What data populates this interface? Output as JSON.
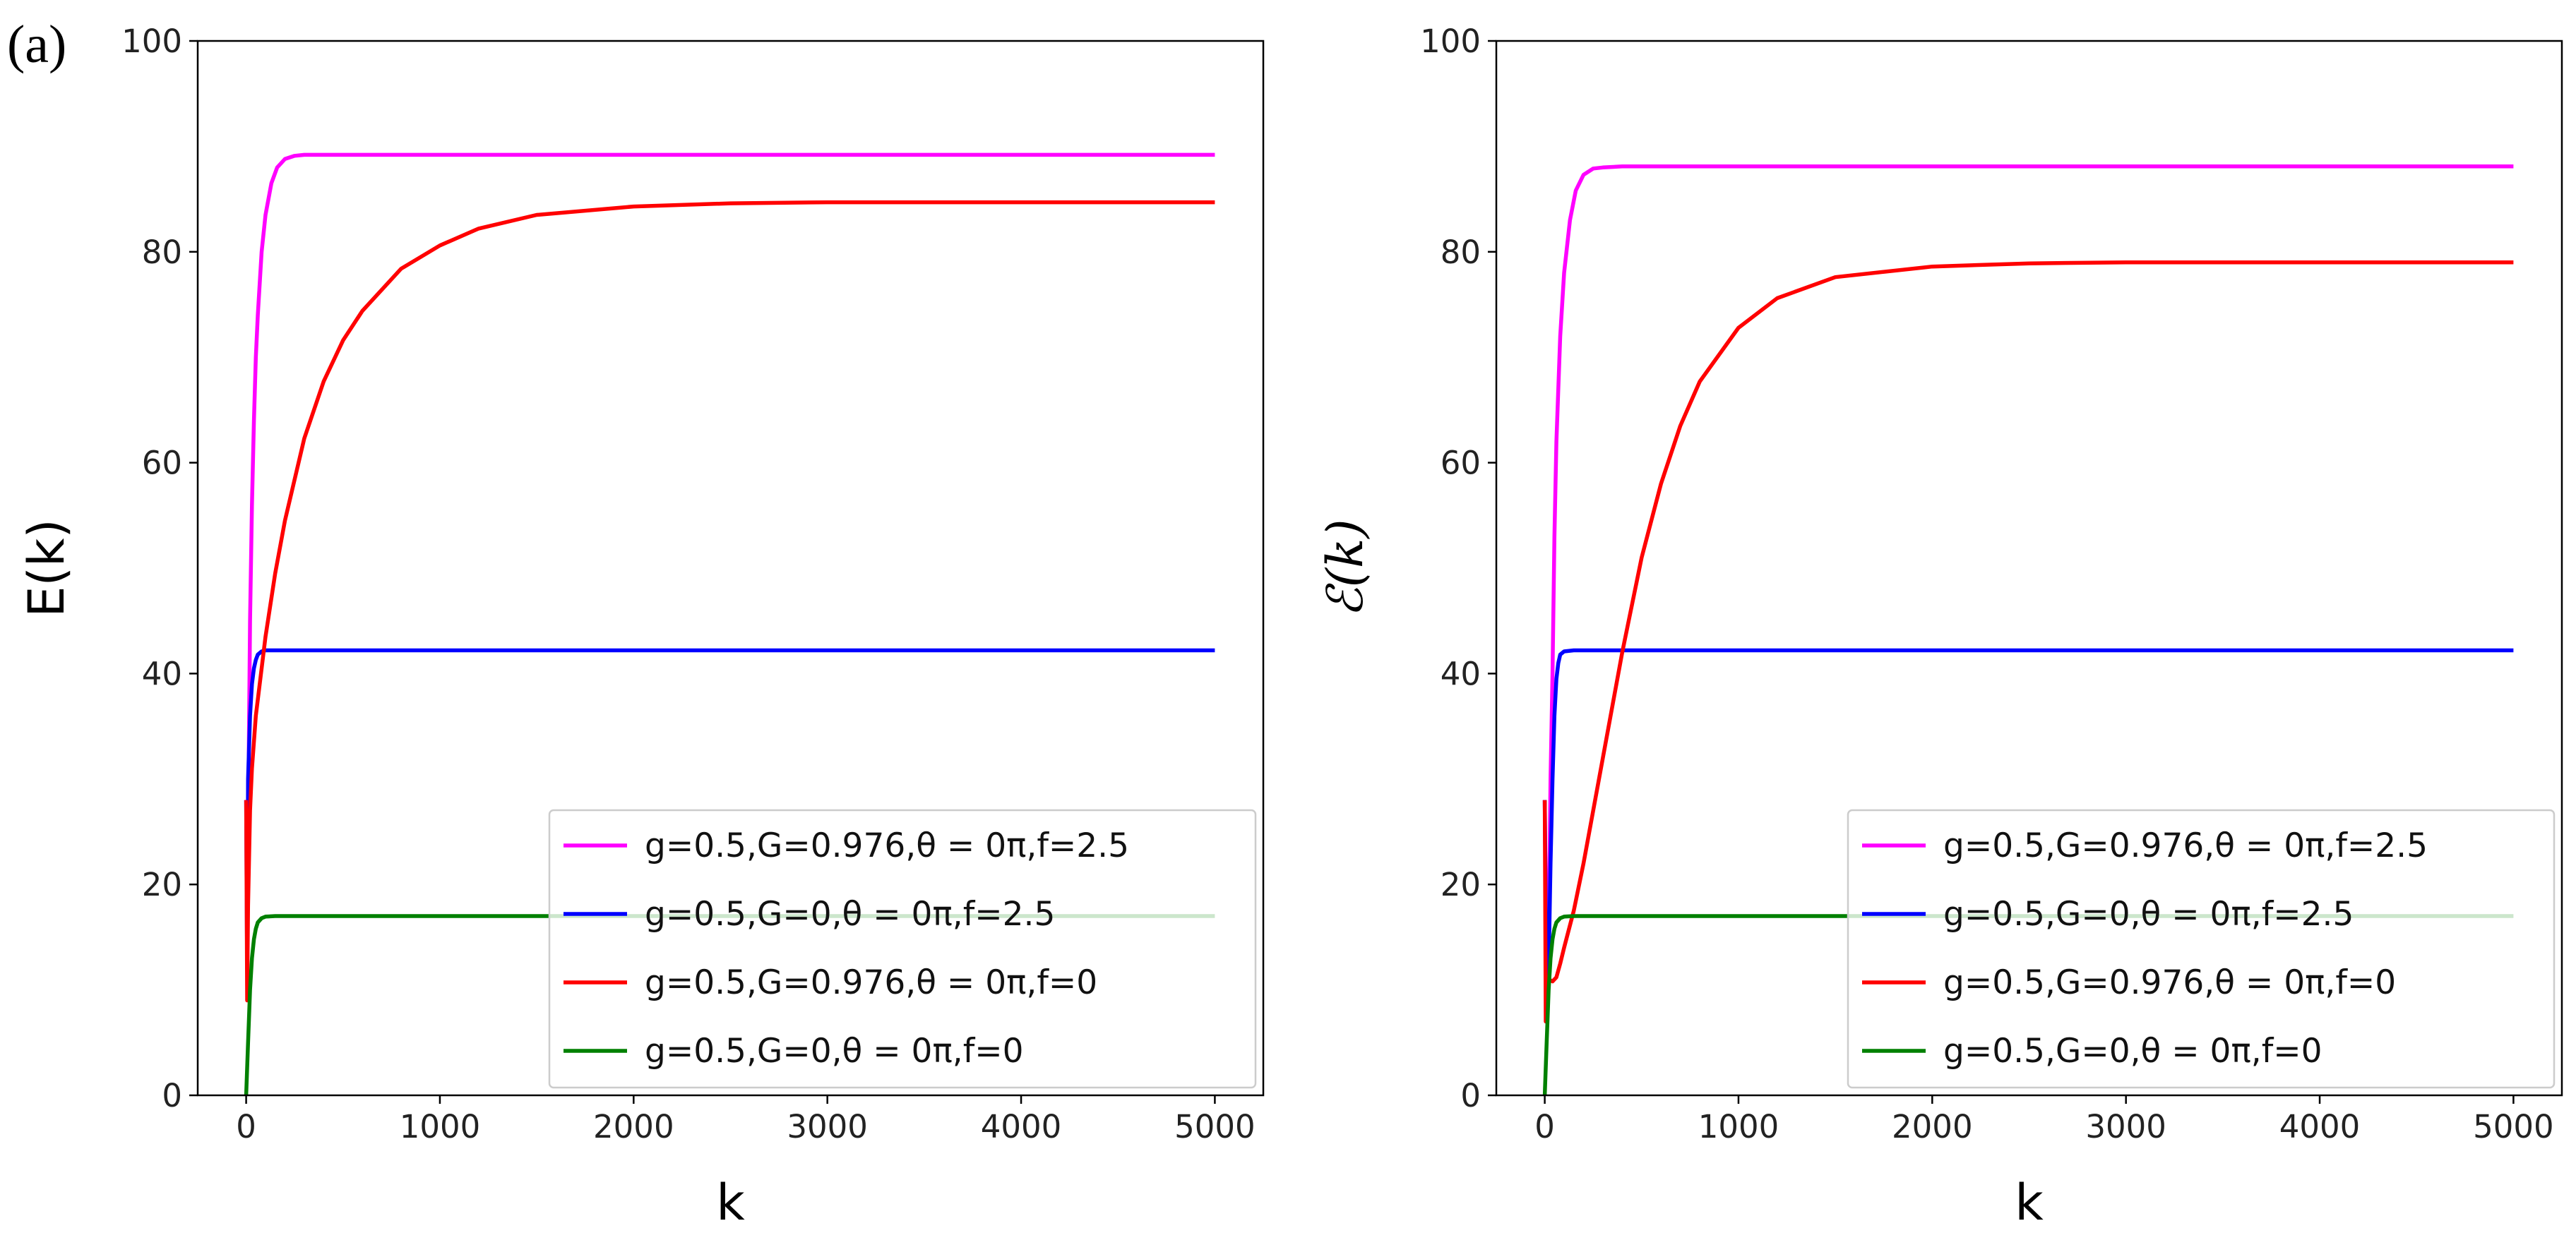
{
  "panel_label": "(a)",
  "chart_data": [
    {
      "type": "line",
      "xlabel": "k",
      "ylabel": "E(k)",
      "ylabel_style": "plain",
      "xlim": [
        -250,
        5250
      ],
      "ylim": [
        0,
        100
      ],
      "xticks": [
        0,
        1000,
        2000,
        3000,
        4000,
        5000
      ],
      "xtick_labels": [
        "0",
        "1000",
        "2000",
        "3000",
        "4000",
        "5000"
      ],
      "yticks": [
        0,
        20,
        40,
        60,
        80,
        100
      ],
      "ytick_labels": [
        "0",
        "20",
        "40",
        "60",
        "80",
        "100"
      ],
      "legend_position": "lower-right",
      "series": [
        {
          "name": "g=0.5,G=0.976,θ = 0π,f=2.5",
          "color": "#ff00ff",
          "x": [
            0,
            10,
            20,
            30,
            40,
            50,
            60,
            80,
            100,
            130,
            160,
            200,
            250,
            300,
            350,
            400,
            500,
            700,
            1000,
            2000,
            3000,
            4000,
            5000
          ],
          "y": [
            28,
            25,
            45,
            56,
            64,
            70,
            74,
            80,
            83.5,
            86.5,
            88,
            88.8,
            89.1,
            89.2,
            89.2,
            89.2,
            89.2,
            89.2,
            89.2,
            89.2,
            89.2,
            89.2,
            89.2
          ]
        },
        {
          "name": "g=0.5,G=0,θ = 0π,f=2.5",
          "color": "#0000ff",
          "x": [
            0,
            5,
            10,
            20,
            30,
            40,
            50,
            60,
            80,
            100,
            150,
            200,
            500,
            1000,
            2000,
            3000,
            4000,
            5000
          ],
          "y": [
            28,
            12,
            30,
            36,
            39,
            40.5,
            41.3,
            41.8,
            42.1,
            42.2,
            42.2,
            42.2,
            42.2,
            42.2,
            42.2,
            42.2,
            42.2,
            42.2
          ]
        },
        {
          "name": "g=0.5,G=0.976,θ = 0π,f=0",
          "color": "#ff0000",
          "x": [
            0,
            5,
            10,
            20,
            30,
            50,
            100,
            150,
            200,
            300,
            400,
            500,
            600,
            800,
            1000,
            1200,
            1500,
            2000,
            2500,
            3000,
            4000,
            5000
          ],
          "y": [
            28,
            9,
            18,
            27,
            31,
            36,
            43.5,
            49.5,
            54.5,
            62.3,
            67.7,
            71.6,
            74.4,
            78.4,
            80.6,
            82.2,
            83.5,
            84.3,
            84.6,
            84.7,
            84.7,
            84.7
          ]
        },
        {
          "name": "g=0.5,G=0,θ = 0π,f=0",
          "color": "#008000",
          "x": [
            0,
            10,
            20,
            30,
            40,
            50,
            60,
            80,
            100,
            150,
            200,
            500,
            1000,
            2000,
            3000,
            4000,
            5000
          ],
          "y": [
            0,
            5,
            10,
            13,
            14.8,
            15.8,
            16.4,
            16.8,
            16.95,
            17,
            17,
            17,
            17,
            17,
            17,
            17,
            17
          ]
        }
      ]
    },
    {
      "type": "line",
      "xlabel": "k",
      "ylabel": "ℰ(k)",
      "ylabel_style": "italic",
      "xlim": [
        -250,
        5250
      ],
      "ylim": [
        0,
        100
      ],
      "xticks": [
        0,
        1000,
        2000,
        3000,
        4000,
        5000
      ],
      "xtick_labels": [
        "0",
        "1000",
        "2000",
        "3000",
        "4000",
        "5000"
      ],
      "yticks": [
        0,
        20,
        40,
        60,
        80,
        100
      ],
      "ytick_labels": [
        "0",
        "20",
        "40",
        "60",
        "80",
        "100"
      ],
      "legend_position": "lower-right",
      "series": [
        {
          "name": "g=0.5,G=0.976,θ = 0π,f=2.5",
          "color": "#ff00ff",
          "x": [
            0,
            10,
            20,
            30,
            40,
            50,
            60,
            80,
            100,
            130,
            160,
            200,
            250,
            300,
            400,
            500,
            1000,
            2000,
            3000,
            4000,
            5000
          ],
          "y": [
            28,
            10,
            15,
            30,
            40,
            53,
            62,
            72,
            78,
            83,
            85.8,
            87.3,
            87.9,
            88,
            88.1,
            88.1,
            88.1,
            88.1,
            88.1,
            88.1,
            88.1
          ]
        },
        {
          "name": "g=0.5,G=0,θ = 0π,f=2.5",
          "color": "#0000ff",
          "x": [
            0,
            10,
            20,
            30,
            40,
            50,
            60,
            70,
            80,
            100,
            150,
            200,
            500,
            1000,
            2000,
            3000,
            4000,
            5000
          ],
          "y": [
            28,
            8,
            12,
            22,
            30,
            36,
            39.5,
            41,
            41.8,
            42.1,
            42.2,
            42.2,
            42.2,
            42.2,
            42.2,
            42.2,
            42.2,
            42.2
          ]
        },
        {
          "name": "g=0.5,G=0.976,θ = 0π,f=0",
          "color": "#ff0000",
          "x": [
            0,
            5,
            10,
            20,
            40,
            60,
            80,
            100,
            150,
            200,
            300,
            400,
            500,
            600,
            700,
            800,
            1000,
            1200,
            1500,
            2000,
            2500,
            3000,
            4000,
            5000
          ],
          "y": [
            28,
            7,
            10,
            11,
            10.8,
            11.2,
            12.5,
            14,
            17.5,
            22,
            32,
            42,
            51,
            58,
            63.5,
            67.7,
            72.8,
            75.6,
            77.6,
            78.6,
            78.9,
            79,
            79,
            79
          ]
        },
        {
          "name": "g=0.5,G=0,θ = 0π,f=0",
          "color": "#008000",
          "x": [
            0,
            10,
            20,
            30,
            40,
            50,
            60,
            80,
            100,
            150,
            200,
            500,
            1000,
            2000,
            3000,
            4000,
            5000
          ],
          "y": [
            0,
            5,
            10,
            13,
            14.8,
            15.8,
            16.4,
            16.8,
            16.95,
            17,
            17,
            17,
            17,
            17,
            17,
            17,
            17
          ]
        }
      ]
    }
  ]
}
